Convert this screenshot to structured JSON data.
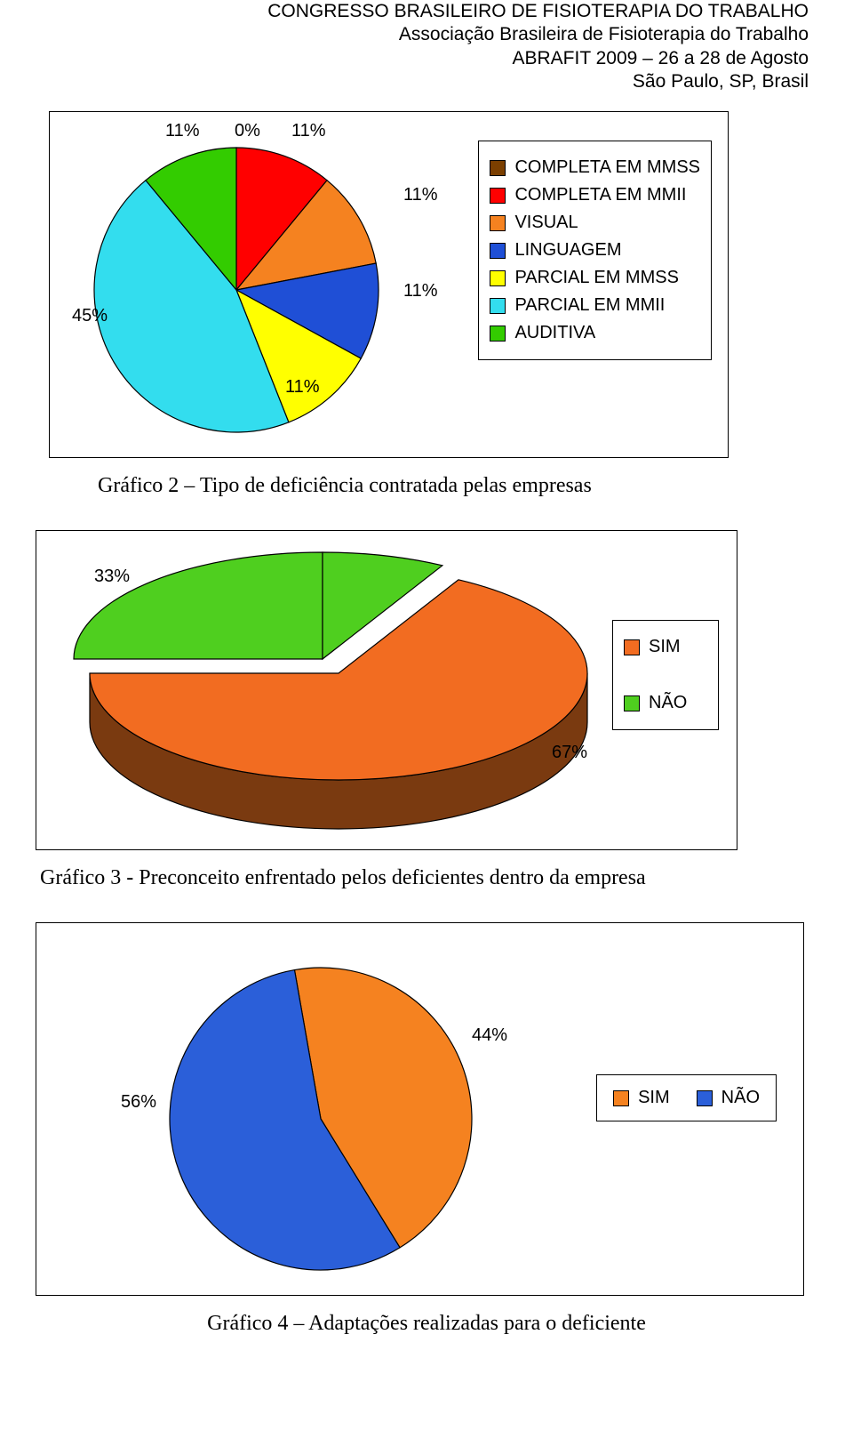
{
  "header": {
    "line1": "CONGRESSO BRASILEIRO DE FISIOTERAPIA DO TRABALHO",
    "line2": "Associação Brasileira de Fisioterapia do Trabalho",
    "line3": "ABRAFIT 2009 – 26 a 28 de Agosto",
    "line4": "São Paulo, SP, Brasil"
  },
  "chart2": {
    "type": "pie",
    "caption": "Gráfico 2 – Tipo de deficiência contratada pelas empresas",
    "slices": [
      {
        "label": "COMPLETA EM MMSS",
        "value": 0,
        "color": "#7b3f00",
        "textlabel": "0%"
      },
      {
        "label": "COMPLETA EM MMII",
        "value": 11,
        "color": "#ff0000",
        "textlabel": "11%"
      },
      {
        "label": "VISUAL",
        "value": 11,
        "color": "#f58220",
        "textlabel": "11%"
      },
      {
        "label": "LINGUAGEM",
        "value": 11,
        "color": "#1f4fd6",
        "textlabel": "11%"
      },
      {
        "label": "PARCIAL EM MMSS",
        "value": 11,
        "color": "#ffff00",
        "textlabel": "11%"
      },
      {
        "label": "PARCIAL EM MMII",
        "value": 45,
        "color": "#33ddee",
        "textlabel": "45%"
      },
      {
        "label": "AUDITIVA",
        "value": 11,
        "color": "#33cc00",
        "textlabel": "11%"
      }
    ],
    "label_fontsize": 20,
    "legend_fontsize": 20,
    "stroke": "#000000",
    "background": "#ffffff"
  },
  "chart3": {
    "type": "pie3d",
    "caption": "Gráfico 3 - Preconceito enfrentado pelos deficientes dentro da empresa",
    "slices": [
      {
        "label": "SIM",
        "value": 67,
        "color_top": "#f26c21",
        "color_side": "#7a3a10",
        "textlabel": "67%"
      },
      {
        "label": "NÃO",
        "value": 33,
        "color_top": "#4fcf1f",
        "color_side": "#1f6e10",
        "textlabel": "33%"
      }
    ],
    "label_fontsize": 20,
    "legend_fontsize": 20,
    "stroke": "#000000",
    "background": "#ffffff"
  },
  "chart4": {
    "type": "pie",
    "caption": "Gráfico 4 – Adaptações realizadas para o deficiente",
    "slices": [
      {
        "label": "SIM",
        "value": 44,
        "color": "#f58220",
        "textlabel": "44%"
      },
      {
        "label": "NÃO",
        "value": 56,
        "color": "#2b5fd9",
        "textlabel": "56%"
      }
    ],
    "label_fontsize": 20,
    "legend_fontsize": 20,
    "stroke": "#000000",
    "background": "#ffffff"
  }
}
